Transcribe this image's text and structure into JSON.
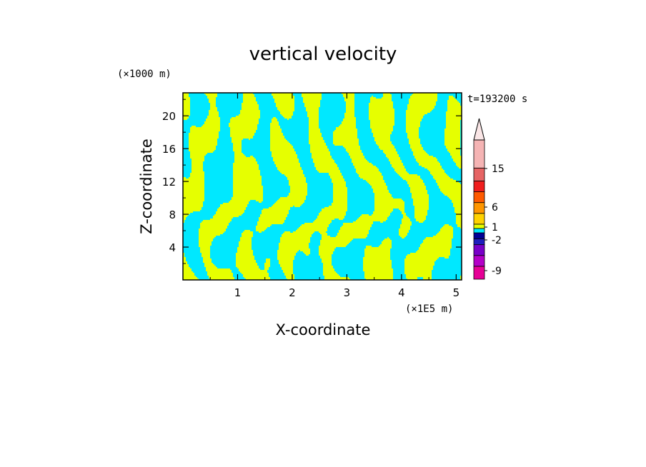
{
  "chart_data": {
    "type": "heatmap",
    "title": "vertical velocity",
    "xlabel": "X-coordinate",
    "ylabel": "Z-coordinate",
    "x_unit": "(×1E5 m)",
    "y_unit": "(×1000 m)",
    "time_label": "t=193200 s",
    "xlim": [
      0,
      5.1
    ],
    "ylim": [
      0,
      22.8
    ],
    "xticks": [
      1,
      2,
      3,
      4,
      5
    ],
    "yticks": [
      4,
      8,
      12,
      16,
      20
    ],
    "colors": {
      "positive_small": "#e6ff00",
      "negative_small": "#00e8ff"
    },
    "colorbar": {
      "labels": [
        "15",
        "6",
        "1",
        "-2",
        "-9"
      ],
      "bands": [
        {
          "color": "#e60096"
        },
        {
          "color": "#b400c8"
        },
        {
          "color": "#7800c8"
        },
        {
          "color": "#1e1ebe"
        },
        {
          "color": "#000096"
        },
        {
          "color": "#00e8ff"
        },
        {
          "color": "#e6ff00"
        },
        {
          "color": "#ffd200"
        },
        {
          "color": "#ff9600"
        },
        {
          "color": "#ff5a00"
        },
        {
          "color": "#f01e1e"
        },
        {
          "color": "#e66464"
        },
        {
          "color": "#f5b4b4"
        },
        {
          "color": "#fae6e6"
        }
      ]
    }
  }
}
